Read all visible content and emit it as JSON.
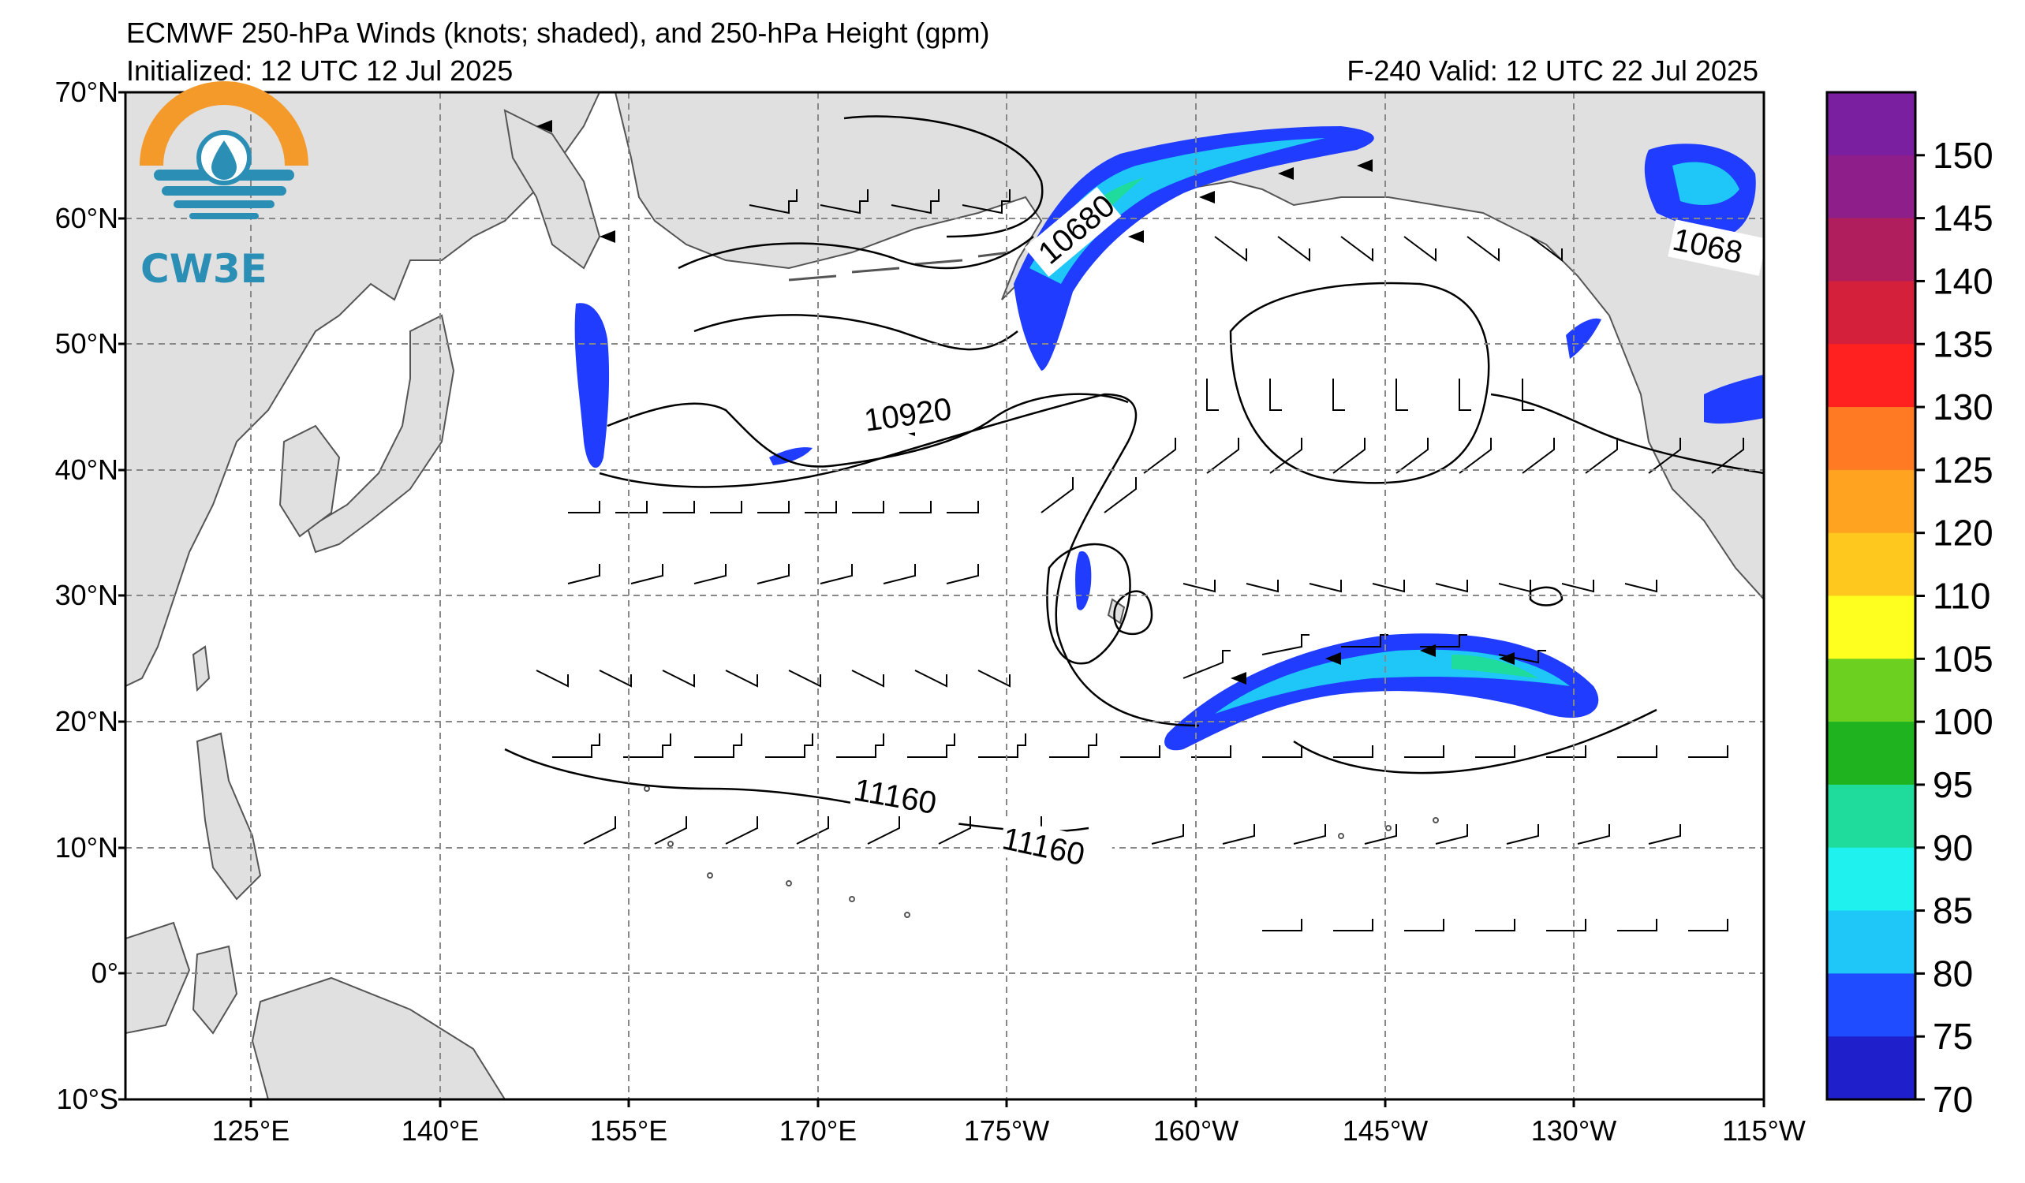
{
  "title": {
    "line1": "ECMWF 250-hPa Winds (knots; shaded), and 250-hPa Height (gpm)",
    "init": "Initialized: 12 UTC 12 Jul 2025",
    "valid": "F-240  Valid: 12 UTC 22 Jul 2025"
  },
  "logo": {
    "text": "CW3E"
  },
  "map": {
    "lat_labels": [
      "70°N",
      "60°N",
      "50°N",
      "40°N",
      "30°N",
      "20°N",
      "10°N",
      "0°",
      "10°S"
    ],
    "lon_labels": [
      "125°E",
      "140°E",
      "155°E",
      "170°E",
      "175°W",
      "160°W",
      "145°W",
      "130°W",
      "115°W"
    ],
    "contour_labels": [
      "10680",
      "10920",
      "11160",
      "11160",
      "1068"
    ]
  },
  "colorbar": {
    "labels": [
      "150",
      "145",
      "140",
      "135",
      "130",
      "125",
      "120",
      "110",
      "105",
      "100",
      "95",
      "90",
      "85",
      "80",
      "75",
      "70"
    ],
    "colors": [
      "#7a1fa0",
      "#8e1f8a",
      "#b01e5e",
      "#d4203a",
      "#ff2020",
      "#ff7a22",
      "#ffa321",
      "#ffc81f",
      "#ffff1f",
      "#6cd020",
      "#1fb41f",
      "#1fdc9c",
      "#1ff2ee",
      "#1fc6f8",
      "#1f4cff",
      "#1f1fcc"
    ]
  }
}
